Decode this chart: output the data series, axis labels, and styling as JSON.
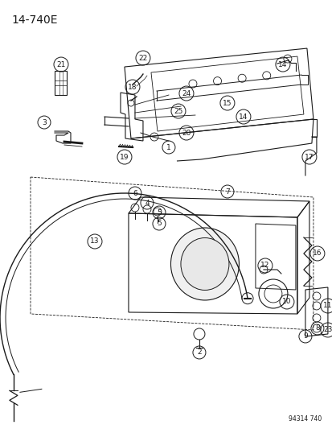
{
  "title": "14-740E",
  "watermark": "94314 740",
  "bg_color": "#ffffff",
  "fg_color": "#1a1a1a",
  "title_fontsize": 10,
  "label_fontsize": 6.5,
  "fig_width": 4.14,
  "fig_height": 5.33,
  "dpi": 100
}
